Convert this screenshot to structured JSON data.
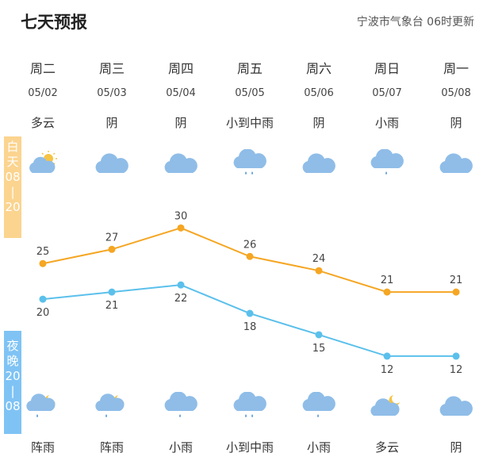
{
  "header": {
    "title": "七天预报",
    "source": "宁波市气象台 06时更新"
  },
  "bands": {
    "day": [
      "白",
      "天",
      "08",
      "|",
      "20"
    ],
    "night": [
      "夜",
      "晚",
      "20",
      "|",
      "08"
    ]
  },
  "days": [
    {
      "weekday": "周二",
      "date": "05/02",
      "day_weather": "多云",
      "night_weather": "阵雨",
      "day_icon": "partly-cloudy-day-icon",
      "night_icon": "shower-night-icon"
    },
    {
      "weekday": "周三",
      "date": "05/03",
      "day_weather": "阴",
      "night_weather": "阵雨",
      "day_icon": "cloudy-icon",
      "night_icon": "shower-night-icon"
    },
    {
      "weekday": "周四",
      "date": "05/04",
      "day_weather": "阴",
      "night_weather": "小雨",
      "day_icon": "cloudy-icon",
      "night_icon": "light-rain-icon"
    },
    {
      "weekday": "周五",
      "date": "05/05",
      "day_weather": "小到中雨",
      "night_weather": "小到中雨",
      "day_icon": "moderate-rain-icon",
      "night_icon": "moderate-rain-icon"
    },
    {
      "weekday": "周六",
      "date": "05/06",
      "day_weather": "阴",
      "night_weather": "小雨",
      "day_icon": "cloudy-icon",
      "night_icon": "light-rain-icon"
    },
    {
      "weekday": "周日",
      "date": "05/07",
      "day_weather": "小雨",
      "night_weather": "多云",
      "day_icon": "light-rain-icon",
      "night_icon": "partly-cloudy-night-icon"
    },
    {
      "weekday": "周一",
      "date": "05/08",
      "day_weather": "阴",
      "night_weather": "阴",
      "day_icon": "cloudy-icon",
      "night_icon": "cloudy-icon"
    }
  ],
  "chart_data": {
    "type": "line",
    "categories": [
      "05/02",
      "05/03",
      "05/04",
      "05/05",
      "05/06",
      "05/07",
      "05/08"
    ],
    "series": [
      {
        "values": [
          25,
          27,
          30,
          26,
          24,
          21,
          21
        ],
        "color": "#f5a623"
      },
      {
        "values": [
          20,
          21,
          22,
          18,
          15,
          12,
          12
        ],
        "color": "#5bc0eb"
      }
    ],
    "grid": false
  },
  "colors": {
    "day_band": "#fbd48f",
    "night_band": "#7fc3f4",
    "cloud": "#8fbde8",
    "sun": "#f6c343",
    "moon": "#f6c343",
    "rain": "#5b9bd5"
  }
}
